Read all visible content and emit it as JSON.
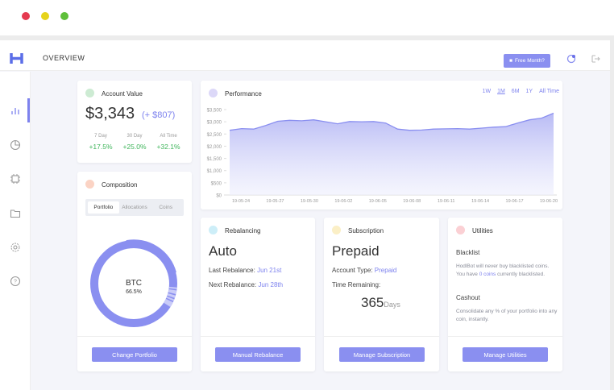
{
  "header": {
    "title": "OVERVIEW",
    "button": "Free Month?"
  },
  "account_value": {
    "title": "Account Value",
    "value": "$3,343",
    "change": "(+ $807)",
    "stats": [
      {
        "label": "7 Day",
        "value": "+17.5%"
      },
      {
        "label": "30 Day",
        "value": "+25.0%"
      },
      {
        "label": "All Time",
        "value": "+32.1%"
      }
    ]
  },
  "composition": {
    "title": "Composition",
    "tabs": [
      "Portfolio",
      "Allocations",
      "Coins"
    ],
    "center_label": "BTC",
    "center_value": "66.5%",
    "button": "Change Portfolio"
  },
  "performance": {
    "title": "Performance",
    "ranges": [
      "1W",
      "1M",
      "6M",
      "1Y",
      "All Time"
    ],
    "ylim": [
      0,
      3500
    ],
    "yticks": [
      {
        "value": 3500,
        "label": "$3,500"
      },
      {
        "value": 3000,
        "label": "$3,000"
      },
      {
        "value": 2500,
        "label": "$2,500"
      },
      {
        "value": 2000,
        "label": "$2,000"
      },
      {
        "value": 1500,
        "label": "$1,500"
      },
      {
        "value": 1000,
        "label": "$1,000"
      },
      {
        "value": 500,
        "label": "$500"
      },
      {
        "value": 0,
        "label": "$0"
      }
    ],
    "xticks": [
      "19-05-24",
      "19-05-27",
      "19-05-30",
      "19-06-02",
      "19-06-05",
      "19-06-08",
      "19-06-11",
      "19-06-14",
      "19-06-17",
      "19-06-20"
    ],
    "values": [
      2650,
      2720,
      2700,
      2850,
      3020,
      3060,
      3040,
      3080,
      3000,
      2920,
      3010,
      3000,
      3010,
      2950,
      2700,
      2650,
      2660,
      2700,
      2710,
      2720,
      2700,
      2740,
      2780,
      2800,
      2950,
      3080,
      3150,
      3350
    ]
  },
  "rebalancing": {
    "title": "Rebalancing",
    "mode": "Auto",
    "last_label": "Last Rebalance:",
    "last_value": "Jun 21st",
    "next_label": "Next Rebalance:",
    "next_value": "Jun 28th",
    "button": "Manual Rebalance"
  },
  "subscription": {
    "title": "Subscription",
    "plan": "Prepaid",
    "type_label": "Account Type:",
    "type_value": "Prepaid",
    "remaining_label": "Time Remaining:",
    "remaining_value": 365,
    "remaining_unit": "Days",
    "button": "Manage Subscription"
  },
  "utilities": {
    "title": "Utilities",
    "blacklist_title": "Blacklist",
    "blacklist_text_1": "HodlBot will never buy blacklisted coins. You have",
    "blacklist_link": "0 coins",
    "blacklist_text_2": "currently blacklisted.",
    "cashout_title": "Cashout",
    "cashout_text": "Consolidate any % of your portfolio into any coin, instantly.",
    "button": "Manage Utilities"
  }
}
